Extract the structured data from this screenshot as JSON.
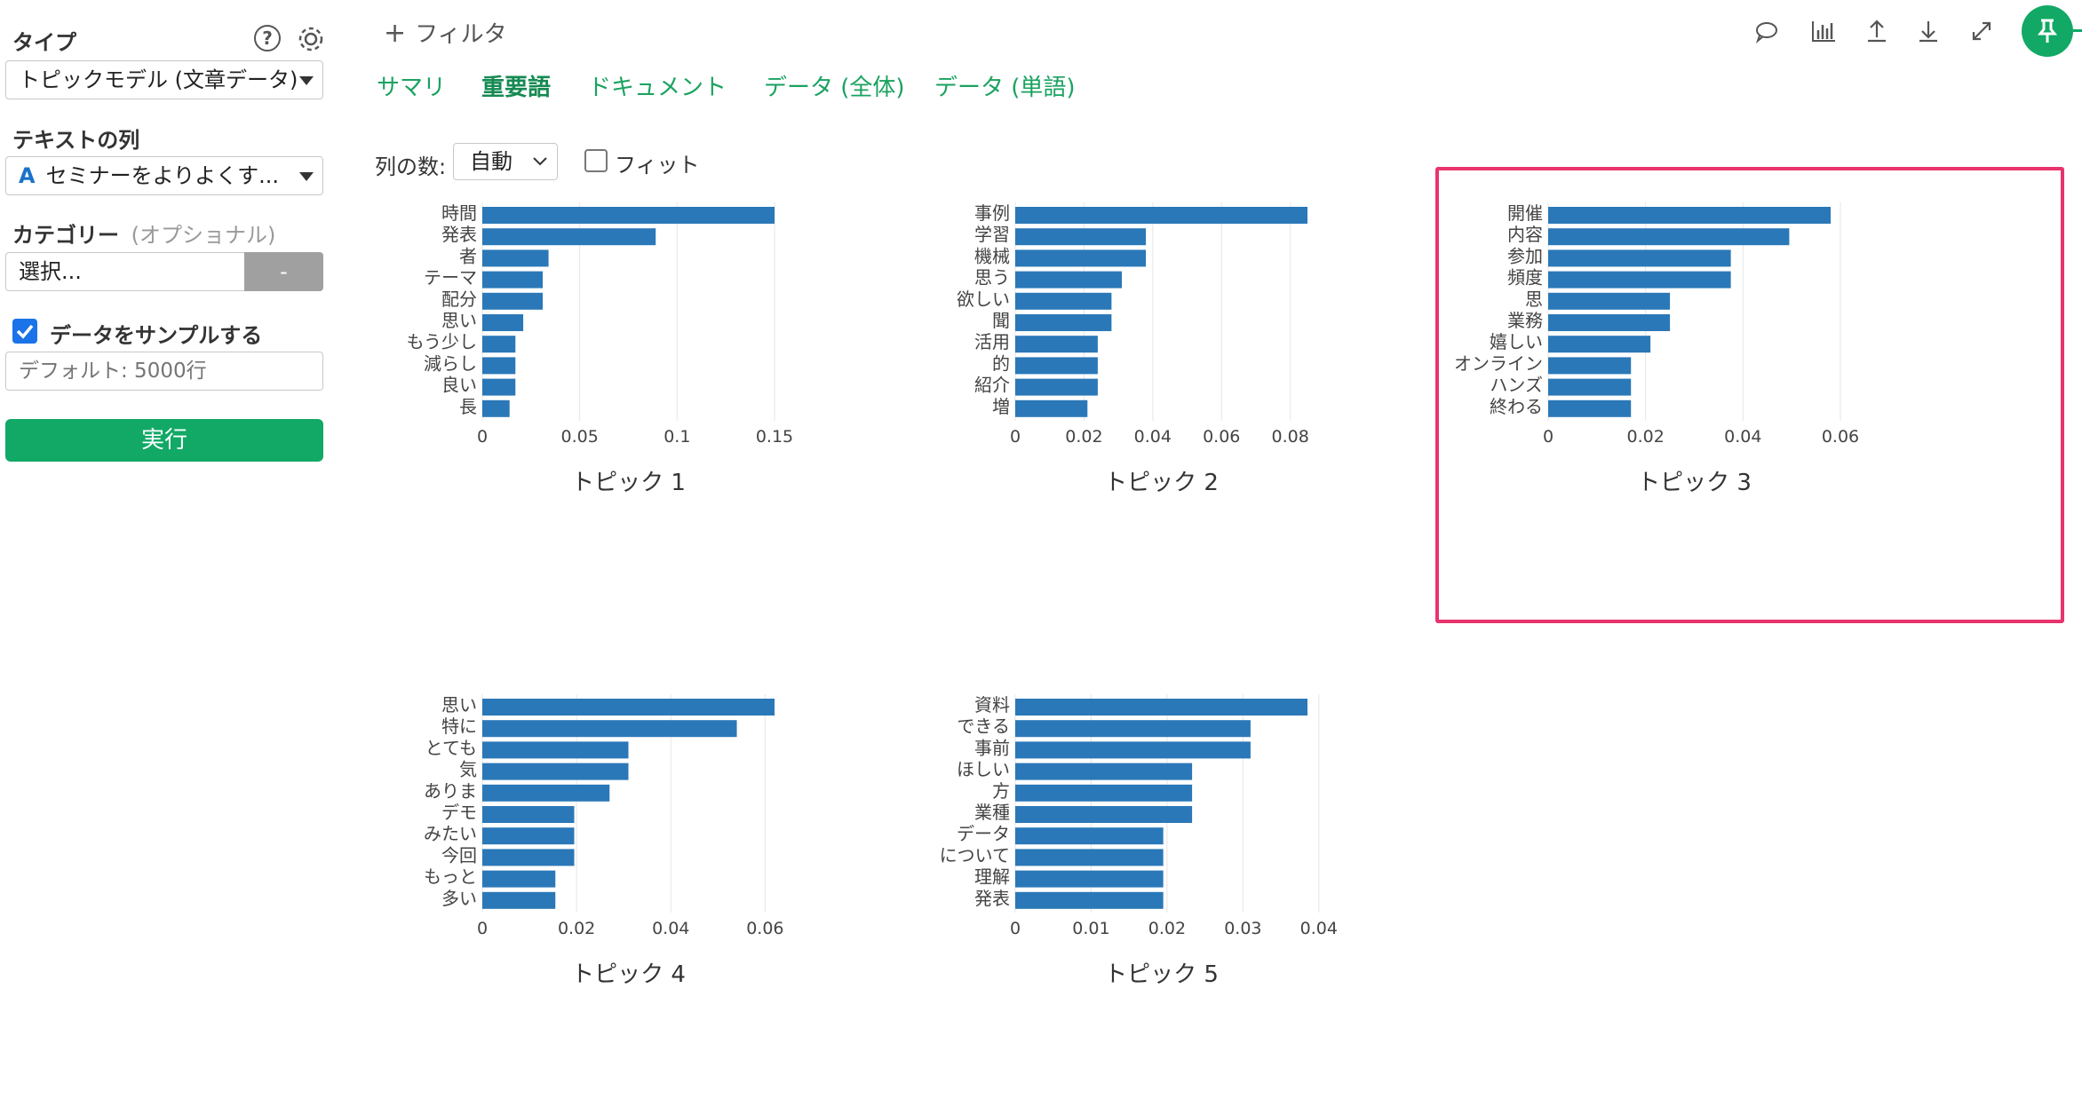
{
  "sidebar": {
    "type_label": "タイプ",
    "type_value": "トピックモデル (文章データ)",
    "text_col_label": "テキストの列",
    "text_col_value": "セミナーをよりよくす...",
    "text_col_icon": "A",
    "category_label": "カテゴリー",
    "category_optional": "(オプショナル)",
    "category_placeholder": "選択...",
    "category_button": "-",
    "sample_label": "データをサンプルする",
    "sample_checked": true,
    "sample_placeholder": "デフォルト: 5000行",
    "run_button": "実行",
    "help_icon": "question-icon",
    "settings_icon": "gear-icon"
  },
  "topbar": {
    "filter_label": "フィルタ",
    "tabs": [
      {
        "label": "サマリ",
        "active": false
      },
      {
        "label": "重要語",
        "active": true
      },
      {
        "label": "ドキュメント",
        "active": false
      },
      {
        "label": "データ (全体)",
        "active": false
      },
      {
        "label": "データ (単語)",
        "active": false
      }
    ],
    "toolbar_icons": [
      "comment-icon",
      "chart-icon",
      "upload-icon",
      "download-icon",
      "expand-icon",
      "pin-icon"
    ]
  },
  "controls": {
    "columns_label": "列の数:",
    "columns_value": "自動",
    "fit_label": "フィット",
    "fit_checked": false
  },
  "colors": {
    "accent": "#1aa260",
    "bar": "#2a78b8",
    "highlight": "#e8336d"
  },
  "chart_data": [
    {
      "type": "bar",
      "orientation": "horizontal",
      "title": "トピック 1",
      "categories": [
        "時間",
        "発表",
        "者",
        "テーマ",
        "配分",
        "思い",
        "もう少し",
        "減らし",
        "良い",
        "長"
      ],
      "values": [
        0.15,
        0.089,
        0.034,
        0.031,
        0.031,
        0.021,
        0.017,
        0.017,
        0.017,
        0.014
      ],
      "xlim": [
        0,
        0.15
      ],
      "xticks": [
        "0",
        "0.05",
        "0.1",
        "0.15"
      ],
      "xtick_values": [
        0,
        0.05,
        0.1,
        0.15
      ]
    },
    {
      "type": "bar",
      "orientation": "horizontal",
      "title": "トピック 2",
      "categories": [
        "事例",
        "学習",
        "機械",
        "思う",
        "欲しい",
        "聞",
        "活用",
        "的",
        "紹介",
        "増"
      ],
      "values": [
        0.085,
        0.038,
        0.038,
        0.031,
        0.028,
        0.028,
        0.024,
        0.024,
        0.024,
        0.021
      ],
      "xlim": [
        0,
        0.085
      ],
      "xticks": [
        "0",
        "0.02",
        "0.04",
        "0.06",
        "0.08"
      ],
      "xtick_values": [
        0,
        0.02,
        0.04,
        0.06,
        0.08
      ]
    },
    {
      "type": "bar",
      "orientation": "horizontal",
      "title": "トピック 3",
      "highlighted": true,
      "categories": [
        "開催",
        "内容",
        "参加",
        "頻度",
        "思",
        "業務",
        "嬉しい",
        "オンライン",
        "ハンズ",
        "終わる"
      ],
      "values": [
        0.058,
        0.0495,
        0.0375,
        0.0375,
        0.025,
        0.025,
        0.021,
        0.017,
        0.017,
        0.017
      ],
      "xlim": [
        0,
        0.06
      ],
      "xticks": [
        "0",
        "0.02",
        "0.04",
        "0.06"
      ],
      "xtick_values": [
        0,
        0.02,
        0.04,
        0.06
      ]
    },
    {
      "type": "bar",
      "orientation": "horizontal",
      "title": "トピック 4",
      "categories": [
        "思い",
        "特に",
        "とても",
        "気",
        "ありま",
        "デモ",
        "みたい",
        "今回",
        "もっと",
        "多い"
      ],
      "values": [
        0.062,
        0.054,
        0.031,
        0.031,
        0.027,
        0.0195,
        0.0195,
        0.0195,
        0.0155,
        0.0155
      ],
      "xlim": [
        0,
        0.062
      ],
      "xticks": [
        "0",
        "0.02",
        "0.04",
        "0.06"
      ],
      "xtick_values": [
        0,
        0.02,
        0.04,
        0.06
      ]
    },
    {
      "type": "bar",
      "orientation": "horizontal",
      "title": "トピック 5",
      "categories": [
        "資料",
        "できる",
        "事前",
        "ほしい",
        "方",
        "業種",
        "データ",
        "について",
        "理解",
        "発表"
      ],
      "values": [
        0.0385,
        0.031,
        0.031,
        0.0233,
        0.0233,
        0.0233,
        0.0195,
        0.0195,
        0.0195,
        0.0195
      ],
      "xlim": [
        0,
        0.0385
      ],
      "xticks": [
        "0",
        "0.01",
        "0.02",
        "0.03",
        "0.04"
      ],
      "xtick_values": [
        0,
        0.01,
        0.02,
        0.03,
        0.04
      ]
    }
  ]
}
